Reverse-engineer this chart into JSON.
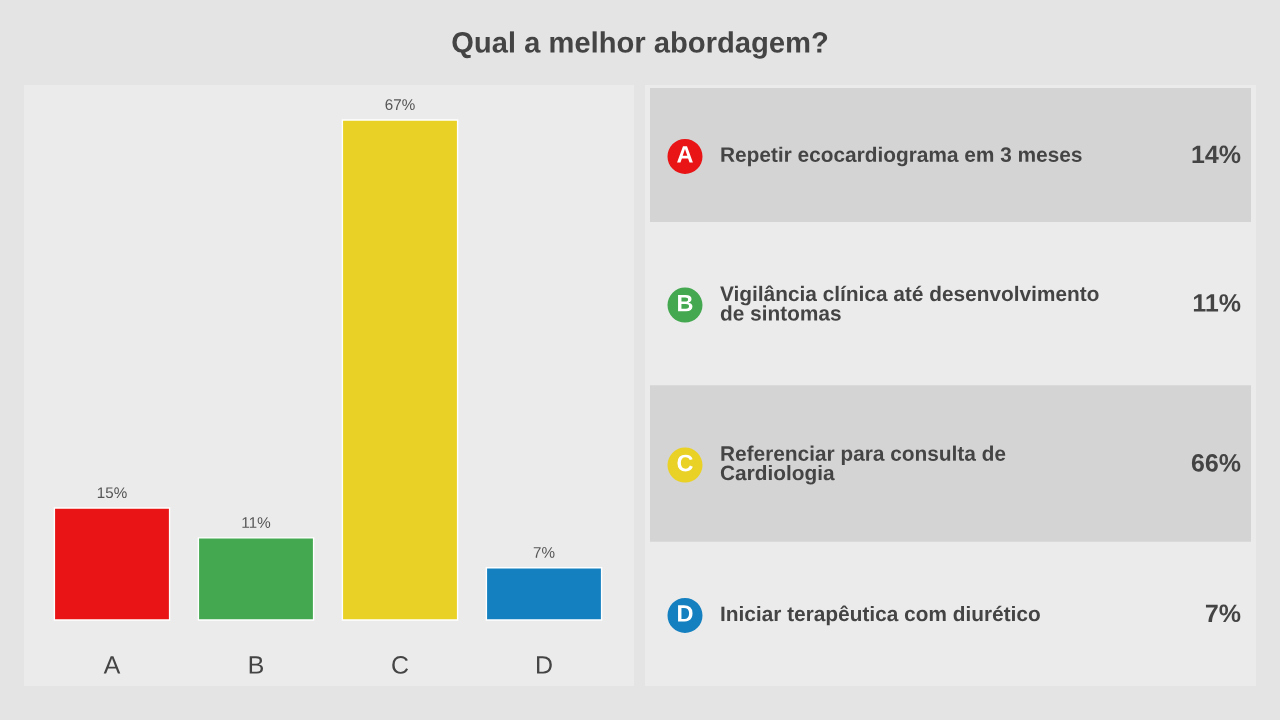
{
  "chart_data": [
    {
      "type": "bar",
      "title": "Qual a melhor abordagem?",
      "categories": [
        "A",
        "B",
        "C",
        "D"
      ],
      "values": [
        15,
        11,
        67,
        7
      ],
      "colors": [
        "#e81416",
        "#43a84f",
        "#e9d125",
        "#1480c0"
      ],
      "value_labels": [
        "15%",
        "11%",
        "67%",
        "7%"
      ]
    },
    {
      "type": "other",
      "categories": [
        "A",
        "B",
        "C",
        "D"
      ],
      "colors": [
        "#e81416",
        "#43a84f",
        "#e9d125",
        "#1480c0"
      ],
      "value_labels": [
        "14%",
        "11%",
        "66%",
        "7%"
      ],
      "annotations": [
        "Repetir ecocardiograma em 3 meses",
        "Vigilância clínica até desenvolvimento de sintomas",
        "Referenciar para consulta de Cardiologia",
        "Iniciar terapêutica com diurético"
      ]
    }
  ]
}
